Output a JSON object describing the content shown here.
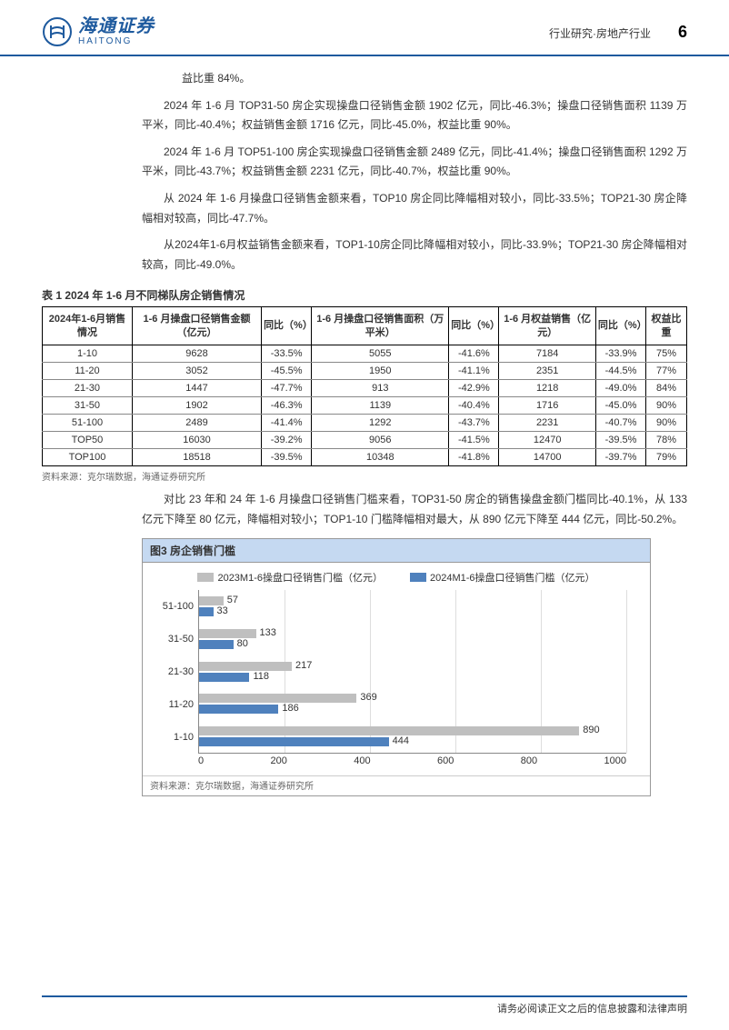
{
  "header": {
    "logo_cn": "海通证券",
    "logo_en": "HAITONG",
    "category": "行业研究·房地产行业",
    "page_number": "6"
  },
  "paragraphs": {
    "p0": "益比重 84%。",
    "p1": "2024 年 1-6 月 TOP31-50 房企实现操盘口径销售金额 1902 亿元，同比-46.3%；操盘口径销售面积 1139 万平米，同比-40.4%；权益销售金额 1716 亿元，同比-45.0%，权益比重 90%。",
    "p2": "2024 年 1-6 月 TOP51-100 房企实现操盘口径销售金额 2489 亿元，同比-41.4%；操盘口径销售面积 1292 万平米，同比-43.7%；权益销售金额 2231 亿元，同比-40.7%，权益比重 90%。",
    "p3": "从 2024 年 1-6 月操盘口径销售金额来看，TOP10 房企同比降幅相对较小，同比-33.5%；TOP21-30 房企降幅相对较高，同比-47.7%。",
    "p4": "从2024年1-6月权益销售金额来看，TOP1-10房企同比降幅相对较小，同比-33.9%；TOP21-30 房企降幅相对较高，同比-49.0%。",
    "p5": "对比 23 年和 24 年 1-6 月操盘口径销售门槛来看，TOP31-50 房企的销售操盘金额门槛同比-40.1%，从 133 亿元下降至 80 亿元，降幅相对较小；TOP1-10 门槛降幅相对最大，从 890 亿元下降至 444 亿元，同比-50.2%。"
  },
  "table1": {
    "title": "表 1  2024 年 1-6 月不同梯队房企销售情况",
    "headers": [
      "2024年1-6月销售情况",
      "1-6 月操盘口径销售金额（亿元）",
      "同比（%）",
      "1-6 月操盘口径销售面积（万平米）",
      "同比（%）",
      "1-6 月权益销售（亿元）",
      "同比（%）",
      "权益比重"
    ],
    "rows": [
      [
        "1-10",
        "9628",
        "-33.5%",
        "5055",
        "-41.6%",
        "7184",
        "-33.9%",
        "75%"
      ],
      [
        "11-20",
        "3052",
        "-45.5%",
        "1950",
        "-41.1%",
        "2351",
        "-44.5%",
        "77%"
      ],
      [
        "21-30",
        "1447",
        "-47.7%",
        "913",
        "-42.9%",
        "1218",
        "-49.0%",
        "84%"
      ],
      [
        "31-50",
        "1902",
        "-46.3%",
        "1139",
        "-40.4%",
        "1716",
        "-45.0%",
        "90%"
      ],
      [
        "51-100",
        "2489",
        "-41.4%",
        "1292",
        "-43.7%",
        "2231",
        "-40.7%",
        "90%"
      ],
      [
        "TOP50",
        "16030",
        "-39.2%",
        "9056",
        "-41.5%",
        "12470",
        "-39.5%",
        "78%"
      ],
      [
        "TOP100",
        "18518",
        "-39.5%",
        "10348",
        "-41.8%",
        "14700",
        "-39.7%",
        "79%"
      ]
    ],
    "source": "资料来源：克尔瑞数据，海通证券研究所"
  },
  "chart": {
    "title": "图3 房企销售门槛",
    "type": "bar_horizontal",
    "legend": [
      {
        "label": "2023M1-6操盘口径销售门槛（亿元）",
        "color": "#bfbfbf"
      },
      {
        "label": "2024M1-6操盘口径销售门槛（亿元）",
        "color": "#4f81bd"
      }
    ],
    "categories": [
      "51-100",
      "31-50",
      "21-30",
      "11-20",
      "1-10"
    ],
    "series": [
      {
        "name": "2023",
        "color": "#bfbfbf",
        "values": [
          57,
          133,
          217,
          369,
          890
        ]
      },
      {
        "name": "2024",
        "color": "#4f81bd",
        "values": [
          33,
          80,
          118,
          186,
          444
        ]
      }
    ],
    "xlim": [
      0,
      1000
    ],
    "xtick_step": 200,
    "xticks": [
      "0",
      "200",
      "400",
      "600",
      "800",
      "1000"
    ],
    "background_color": "#ffffff",
    "grid_color": "#dddddd",
    "source": "资料来源：克尔瑞数据，海通证券研究所"
  },
  "footer": {
    "disclaimer": "请务必阅读正文之后的信息披露和法律声明"
  },
  "colors": {
    "brand": "#1e5a9e",
    "chart_title_bg": "#c5d9f1"
  }
}
